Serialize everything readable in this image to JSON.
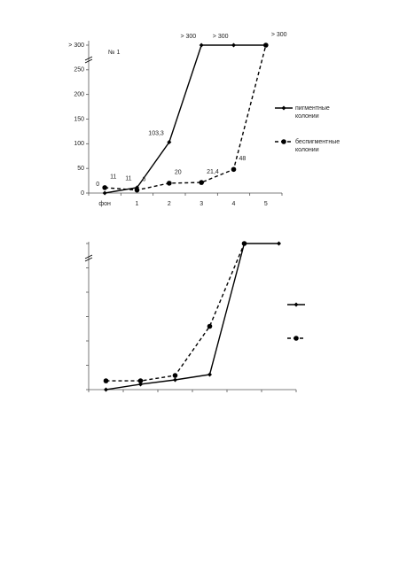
{
  "chart_data": [
    {
      "type": "line",
      "annotation": "№ 1",
      "categories": [
        "фон",
        "1",
        "2",
        "3",
        "4",
        "5"
      ],
      "ylim": [
        0,
        300
      ],
      "yticks": [
        0,
        50,
        100,
        150,
        200,
        250,
        {
          "value": 300,
          "label": "> 300"
        }
      ],
      "tick_labels": true,
      "series": [
        {
          "name": "пигментные колонии",
          "color": "#000000",
          "dash": false,
          "marker": "diamond",
          "values": [
            0,
            11,
            103.3,
            300,
            300,
            300
          ],
          "value_labels": [
            "0",
            "11",
            "103,3",
            "> 300",
            "> 300",
            null
          ]
        },
        {
          "name": "беспигментные колонии",
          "color": "#000000",
          "dash": true,
          "marker": "circle",
          "values": [
            11,
            6,
            20,
            21.4,
            48,
            300
          ],
          "value_labels": [
            "11",
            "6",
            "20",
            "21,4",
            "48",
            "> 300"
          ]
        }
      ]
    },
    {
      "type": "line",
      "categories": [
        null,
        null,
        null,
        null,
        null,
        null
      ],
      "ylim": [
        0,
        300
      ],
      "yticks": [
        0,
        50,
        100,
        150,
        200,
        250,
        300
      ],
      "tick_labels": false,
      "series": [
        {
          "color": "#000000",
          "dash": false,
          "marker": "diamond",
          "values": [
            0,
            11,
            20,
            31,
            300,
            300
          ]
        },
        {
          "color": "#000000",
          "dash": true,
          "marker": "circle",
          "values": [
            18,
            18,
            29,
            130,
            300,
            null
          ]
        }
      ]
    }
  ]
}
